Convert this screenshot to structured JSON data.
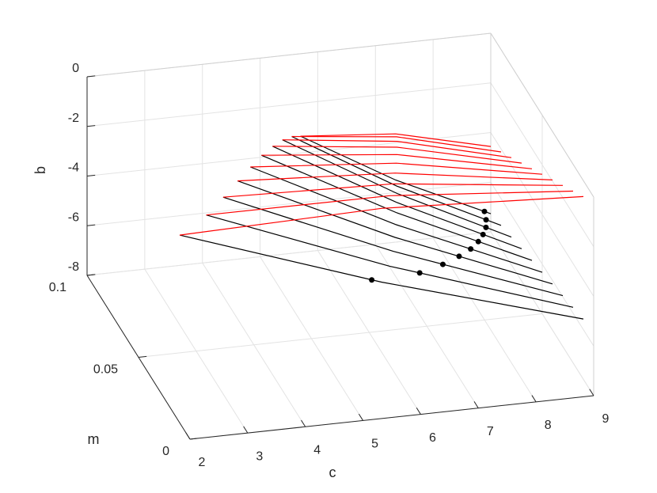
{
  "chart_data": {
    "type": "line3d",
    "xlabel": "c",
    "ylabel": "m",
    "zlabel": "b",
    "xlim": [
      2,
      9
    ],
    "ylim": [
      0,
      0.1
    ],
    "zlim": [
      -8,
      0
    ],
    "xticks": [
      2,
      3,
      4,
      5,
      6,
      7,
      8,
      9
    ],
    "yticks": [
      0,
      0.05,
      0.1
    ],
    "zticks": [
      -8,
      -6,
      -4,
      -2,
      0
    ],
    "grid": true,
    "surfaces": [
      {
        "color": "#000000",
        "curves": [
          {
            "m": 0.01,
            "c": [
              2,
              5.5,
              9
            ],
            "b": [
              -0.44,
              -3.21,
              -5.57
            ]
          },
          {
            "m": 0.02,
            "c": [
              2.64,
              5.82,
              9
            ],
            "b": [
              -0.45,
              -3.31,
              -5.76
            ]
          },
          {
            "m": 0.03,
            "c": [
              3.11,
              6.06,
              9
            ],
            "b": [
              -0.51,
              -3.43,
              -5.95
            ]
          },
          {
            "m": 0.04,
            "c": [
              3.54,
              6.27,
              9
            ],
            "b": [
              -0.62,
              -3.58,
              -6.14
            ]
          },
          {
            "m": 0.05,
            "c": [
              3.94,
              6.47,
              9
            ],
            "b": [
              -0.82,
              -3.78,
              -6.33
            ]
          },
          {
            "m": 0.06,
            "c": [
              4.31,
              6.66,
              9
            ],
            "b": [
              -1.1,
              -4.01,
              -6.51
            ]
          },
          {
            "m": 0.07,
            "c": [
              4.68,
              6.84,
              9
            ],
            "b": [
              -1.49,
              -4.3,
              -6.7
            ]
          },
          {
            "m": 0.08,
            "c": [
              5.03,
              7.02,
              9
            ],
            "b": [
              -1.98,
              -4.64,
              -6.89
            ]
          },
          {
            "m": 0.09,
            "c": [
              5.37,
              7.19,
              9
            ],
            "b": [
              -2.59,
              -5.04,
              -7.08
            ]
          },
          {
            "m": 0.1,
            "c": [
              5.7,
              7.35,
              9
            ],
            "b": [
              -3.32,
              -5.5,
              -7.27
            ]
          }
        ]
      },
      {
        "color": "#ff0000",
        "curves": [
          {
            "m": 0.01,
            "c": [
              2,
              5.5,
              9
            ],
            "b": [
              -0.44,
              -0.24,
              -0.64
            ]
          },
          {
            "m": 0.02,
            "c": [
              2.64,
              5.82,
              9
            ],
            "b": [
              -0.45,
              -0.47,
              -1.08
            ]
          },
          {
            "m": 0.03,
            "c": [
              3.11,
              6.06,
              9
            ],
            "b": [
              -0.51,
              -0.71,
              -1.51
            ]
          },
          {
            "m": 0.04,
            "c": [
              3.54,
              6.27,
              9
            ],
            "b": [
              -0.62,
              -0.99,
              -1.95
            ]
          },
          {
            "m": 0.05,
            "c": [
              3.94,
              6.47,
              9
            ],
            "b": [
              -0.82,
              -1.3,
              -2.38
            ]
          },
          {
            "m": 0.06,
            "c": [
              4.31,
              6.66,
              9
            ],
            "b": [
              -1.1,
              -1.66,
              -2.82
            ]
          },
          {
            "m": 0.07,
            "c": [
              4.68,
              6.84,
              9
            ],
            "b": [
              -1.49,
              -2.07,
              -3.25
            ]
          },
          {
            "m": 0.08,
            "c": [
              5.03,
              7.02,
              9
            ],
            "b": [
              -1.98,
              -2.54,
              -3.69
            ]
          },
          {
            "m": 0.09,
            "c": [
              5.37,
              7.19,
              9
            ],
            "b": [
              -2.59,
              -3.06,
              -4.12
            ]
          },
          {
            "m": 0.1,
            "c": [
              5.7,
              7.35,
              9
            ],
            "b": [
              -3.32,
              -3.64,
              -4.56
            ]
          }
        ]
      }
    ],
    "points": {
      "color": "#000000",
      "c": [
        5.33,
        6.34,
        6.92,
        7.38,
        7.76,
        8.07,
        8.33,
        8.56,
        8.74,
        8.89
      ],
      "m": [
        0.01,
        0.02,
        0.03,
        0.04,
        0.05,
        0.06,
        0.07,
        0.08,
        0.09,
        0.1
      ],
      "b": [
        -3.08,
        -3.71,
        -4.17,
        -4.62,
        -5.08,
        -5.52,
        -5.96,
        -6.39,
        -6.79,
        -7.15
      ]
    }
  }
}
